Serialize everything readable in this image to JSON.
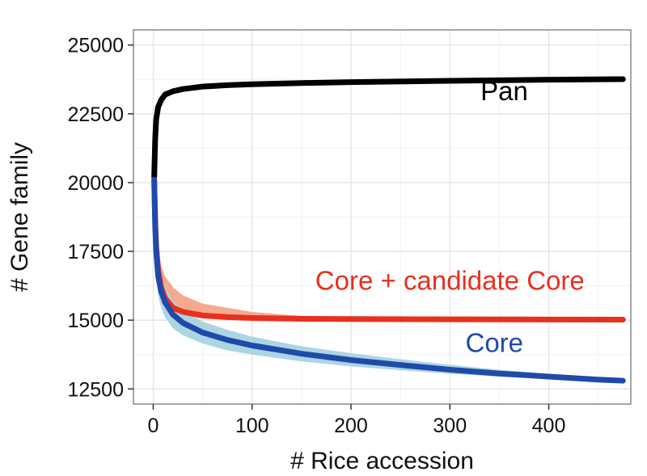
{
  "chart_data": {
    "type": "line",
    "title": "",
    "xlabel": "# Rice accession",
    "ylabel": "# Gene family",
    "xlim": [
      -20,
      483
    ],
    "ylim": [
      11950,
      25550
    ],
    "xticks": [
      0,
      100,
      200,
      300,
      400
    ],
    "yticks": [
      12500,
      15000,
      17500,
      20000,
      22500,
      25000
    ],
    "grid": true,
    "legend": "none",
    "series": [
      {
        "name": "Pan",
        "color": "#000000",
        "band_color": "#bfbfbf",
        "x": [
          1,
          2,
          3,
          5,
          8,
          12,
          20,
          30,
          50,
          75,
          100,
          150,
          200,
          300,
          400,
          475
        ],
        "y": [
          20200,
          21600,
          22300,
          22750,
          23000,
          23200,
          23320,
          23400,
          23490,
          23540,
          23575,
          23620,
          23650,
          23700,
          23740,
          23760
        ],
        "low": [
          20000,
          21300,
          22050,
          22550,
          22830,
          23070,
          23220,
          23320,
          23440,
          23500,
          23540,
          23590,
          23625,
          23685,
          23730,
          23760
        ],
        "high": [
          20400,
          21950,
          22600,
          22980,
          23180,
          23330,
          23420,
          23480,
          23540,
          23580,
          23610,
          23650,
          23675,
          23715,
          23750,
          23760
        ]
      },
      {
        "name": "Core + candidate Core",
        "color": "#e8301e",
        "band_color": "#f4a58a",
        "x": [
          1,
          2,
          3,
          5,
          8,
          12,
          20,
          30,
          50,
          75,
          100,
          150,
          200,
          300,
          400,
          475
        ],
        "y": [
          20100,
          18600,
          17700,
          16800,
          16200,
          15800,
          15450,
          15300,
          15170,
          15110,
          15080,
          15050,
          15040,
          15030,
          15025,
          15020
        ],
        "low": [
          19700,
          17900,
          17100,
          16300,
          15800,
          15500,
          15250,
          15150,
          15080,
          15050,
          15030,
          15015,
          15010,
          15010,
          15010,
          15010
        ],
        "high": [
          20300,
          19400,
          18500,
          17600,
          17000,
          16600,
          16200,
          15900,
          15600,
          15450,
          15300,
          15150,
          15090,
          15060,
          15040,
          15030
        ]
      },
      {
        "name": "Core",
        "color": "#1f4aa8",
        "band_color": "#a8d3e3",
        "x": [
          1,
          2,
          3,
          5,
          8,
          12,
          20,
          30,
          50,
          75,
          100,
          150,
          200,
          250,
          300,
          350,
          400,
          450,
          475
        ],
        "y": [
          20100,
          18400,
          17500,
          16600,
          16050,
          15650,
          15200,
          14900,
          14550,
          14280,
          14080,
          13780,
          13550,
          13370,
          13200,
          13060,
          12950,
          12840,
          12800
        ],
        "low": [
          19600,
          17600,
          16800,
          15900,
          15450,
          15100,
          14700,
          14450,
          14150,
          13900,
          13750,
          13500,
          13320,
          13180,
          13050,
          12950,
          12860,
          12780,
          12780
        ],
        "high": [
          20300,
          19000,
          18100,
          17200,
          16600,
          16200,
          15700,
          15350,
          14950,
          14650,
          14400,
          14050,
          13800,
          13580,
          13380,
          13200,
          13050,
          12900,
          12820
        ]
      }
    ],
    "annotations": [
      {
        "text": "Pan",
        "color": "#000000",
        "x": 355,
        "y": 23000
      },
      {
        "text": "Core + candidate Core",
        "color": "#e8301e",
        "x": 300,
        "y": 16100
      },
      {
        "text": "Core",
        "color": "#1f4aa8",
        "x": 345,
        "y": 13850
      }
    ]
  }
}
